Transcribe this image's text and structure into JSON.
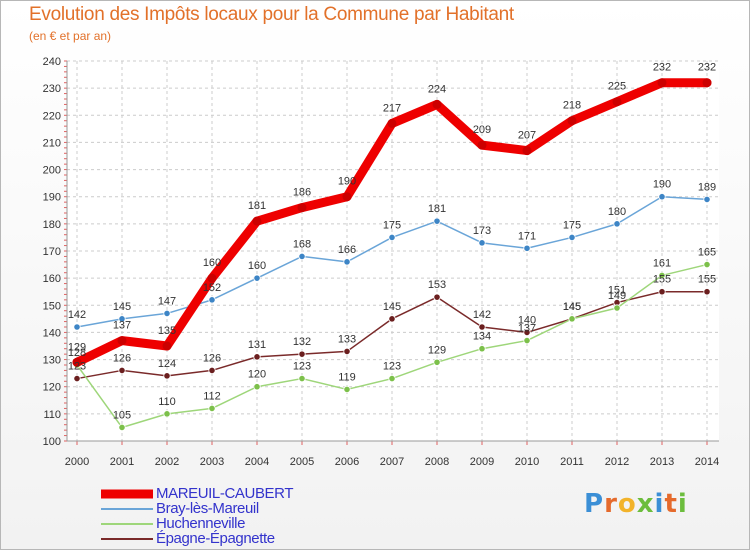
{
  "header": {
    "title": "Evolution des Impôts locaux pour la Commune par Habitant",
    "subtitle": "(en € et par an)"
  },
  "brand": {
    "letters": [
      "P",
      "r",
      "o",
      "x",
      "i",
      "t",
      "i"
    ],
    "colors": [
      "#3b8fd6",
      "#e56a2c",
      "#f2b32a",
      "#6cbd3d",
      "#3b8fd6",
      "#e56a2c",
      "#6cbd3d"
    ]
  },
  "chart_data": {
    "type": "line",
    "title": "Evolution des Impôts locaux pour la Commune par Habitant",
    "subtitle": "(en € et par an)",
    "xlabel": "",
    "ylabel": "",
    "x": [
      "2000",
      "2001",
      "2002",
      "2003",
      "2004",
      "2005",
      "2006",
      "2007",
      "2008",
      "2009",
      "2010",
      "2011",
      "2012",
      "2013",
      "2014"
    ],
    "ylim": [
      100,
      240
    ],
    "yticks": [
      100,
      110,
      120,
      130,
      140,
      150,
      160,
      170,
      180,
      190,
      200,
      210,
      220,
      230,
      240
    ],
    "grid": true,
    "legend_position": "bottom-left",
    "series": [
      {
        "name": "MAREUIL-CAUBERT",
        "color": "#ee0000",
        "highlight": true,
        "values": [
          129,
          137,
          135,
          160,
          181,
          186,
          190,
          217,
          224,
          209,
          207,
          218,
          225,
          232,
          232
        ],
        "labels": [
          "129",
          "137",
          "135",
          "160",
          "181",
          "186",
          "190",
          "217",
          "224",
          "209",
          "207",
          "218",
          "225",
          "232",
          "232"
        ]
      },
      {
        "name": "Bray-lès-Mareuil",
        "color": "#6aa5d8",
        "marker": "#3d85c6",
        "values": [
          142,
          145,
          147,
          152,
          160,
          168,
          166,
          175,
          181,
          173,
          171,
          175,
          180,
          190,
          189
        ],
        "labels": [
          "142",
          "145",
          "147",
          "152",
          "160",
          "168",
          "166",
          "175",
          "181",
          "173",
          "171",
          "175",
          "180",
          "190",
          "189"
        ]
      },
      {
        "name": "Huchenneville",
        "color": "#9ed67a",
        "marker": "#7cc04a",
        "values": [
          128,
          105,
          110,
          112,
          120,
          123,
          119,
          123,
          129,
          134,
          137,
          145,
          149,
          161,
          165
        ],
        "labels": [
          "128",
          "105",
          "110",
          "112",
          "120",
          "123",
          "119",
          "123",
          "129",
          "134",
          "137",
          "145",
          "149",
          "161",
          "165"
        ]
      },
      {
        "name": "Épagne-Épagnette",
        "color": "#7a2a2a",
        "marker": "#6b1f1f",
        "values": [
          123,
          126,
          124,
          126,
          131,
          132,
          133,
          145,
          153,
          142,
          140,
          145,
          151,
          155,
          155
        ],
        "labels": [
          "123",
          "126",
          "124",
          "126",
          "131",
          "132",
          "133",
          "145",
          "153",
          "142",
          "140",
          "145",
          "151",
          "155",
          "155"
        ]
      }
    ]
  }
}
